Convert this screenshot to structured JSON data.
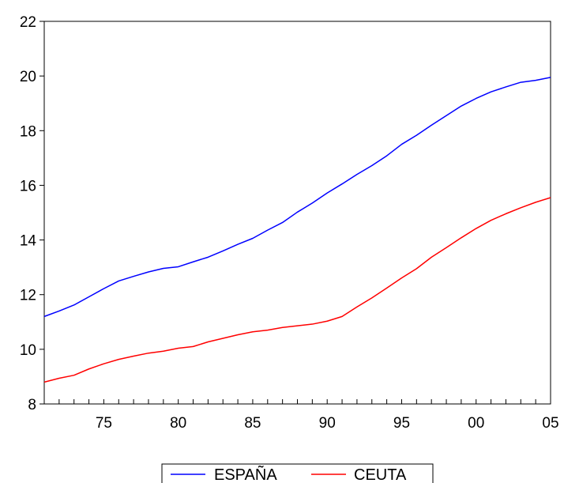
{
  "chart_data": {
    "type": "line",
    "title": "",
    "xlabel": "",
    "ylabel": "",
    "x": [
      1971,
      1972,
      1973,
      1974,
      1975,
      1976,
      1977,
      1978,
      1979,
      1980,
      1981,
      1982,
      1983,
      1984,
      1985,
      1986,
      1987,
      1988,
      1989,
      1990,
      1991,
      1992,
      1993,
      1994,
      1995,
      1996,
      1997,
      1998,
      1999,
      2000,
      2001,
      2002,
      2003,
      2004,
      2005
    ],
    "xlim": [
      1971,
      2005
    ],
    "ylim": [
      8,
      22
    ],
    "x_ticks": [
      1975,
      1980,
      1985,
      1990,
      1995,
      2000,
      2005
    ],
    "x_tick_labels": [
      "75",
      "80",
      "85",
      "90",
      "95",
      "00",
      "05"
    ],
    "y_ticks": [
      8,
      10,
      12,
      14,
      16,
      18,
      20,
      22
    ],
    "y_tick_labels": [
      "8",
      "10",
      "12",
      "14",
      "16",
      "18",
      "20",
      "22"
    ],
    "grid": false,
    "legend_position": "bottom-center",
    "series": [
      {
        "name": "ESPAÑA",
        "color": "#0000ff",
        "values": [
          11.2,
          11.4,
          11.62,
          11.92,
          12.22,
          12.5,
          12.67,
          12.83,
          12.96,
          13.02,
          13.2,
          13.37,
          13.6,
          13.84,
          14.06,
          14.36,
          14.64,
          15.02,
          15.35,
          15.72,
          16.05,
          16.4,
          16.72,
          17.08,
          17.5,
          17.83,
          18.2,
          18.55,
          18.9,
          19.18,
          19.42,
          19.6,
          19.77,
          19.84,
          19.95
        ]
      },
      {
        "name": "CEUTA",
        "color": "#ff0000",
        "values": [
          8.8,
          8.94,
          9.05,
          9.28,
          9.47,
          9.63,
          9.75,
          9.86,
          9.93,
          10.04,
          10.1,
          10.27,
          10.4,
          10.53,
          10.64,
          10.7,
          10.8,
          10.86,
          10.92,
          11.03,
          11.2,
          11.55,
          11.88,
          12.24,
          12.61,
          12.95,
          13.37,
          13.72,
          14.08,
          14.42,
          14.72,
          14.96,
          15.18,
          15.38,
          15.55
        ]
      }
    ]
  }
}
